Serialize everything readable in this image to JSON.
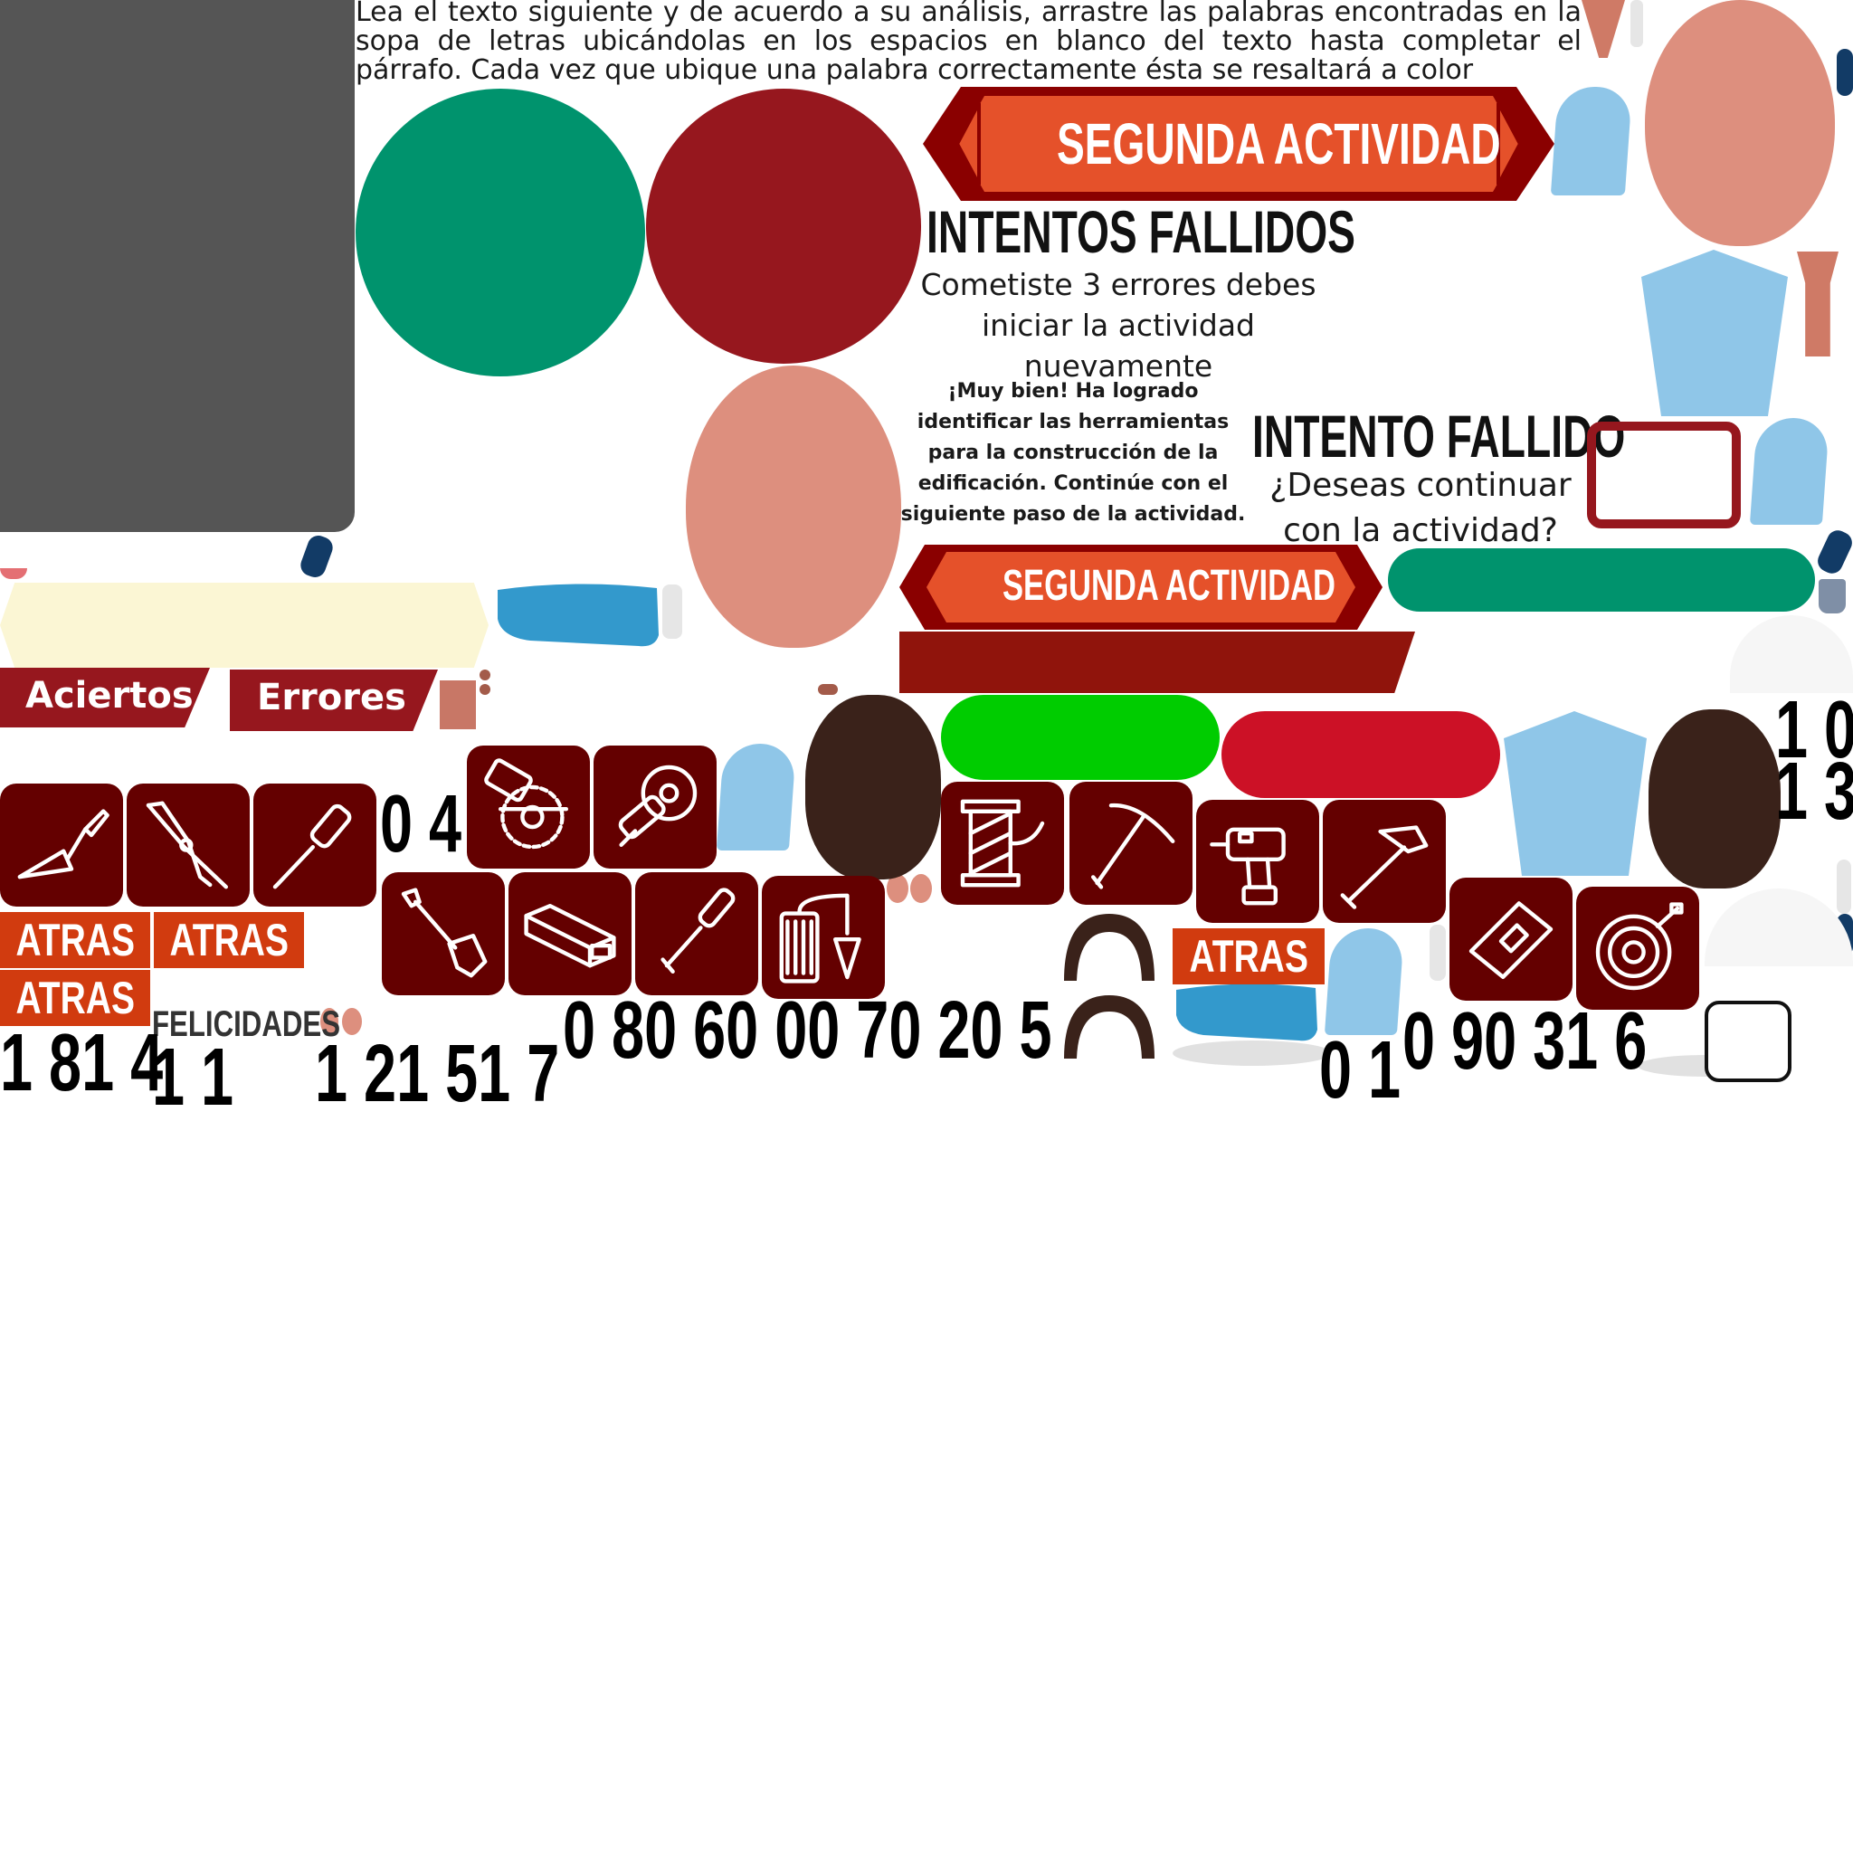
{
  "instructions": "Lea el texto siguiente y de acuerdo a su análisis, arrastre las palabras encontradas en la sopa de letras ubicándolas en los espacios en blanco del texto hasta completar el párrafo. Cada vez que ubique una palabra correctamente ésta se resaltará a color",
  "banners": {
    "segunda_large": "SEGUNDA ACTIVIDAD",
    "segunda_small": "SEGUNDA ACTIVIDAD"
  },
  "intentos": {
    "title": "INTENTOS FALLIDOS",
    "message": "Cometiste 3 errores debes iniciar la actividad nuevamente"
  },
  "success": {
    "message": "¡Muy bien! Ha logrado identificar las herramientas para la construcción de la edificación. Continúe con el siguiente paso de la actividad."
  },
  "intento": {
    "title": "INTENTO FALLIDO",
    "question": "¿Deseas continuar con la actividad?"
  },
  "labels": {
    "aciertos": "Aciertos",
    "errores": "Errores",
    "felicidades": "FELICIDADES"
  },
  "atras_buttons": [
    "ATRAS",
    "ATRAS",
    "ATRAS",
    "ATRAS"
  ],
  "numbers": {
    "n1": "0 4",
    "n2": "0 80 60 00 70 20 5",
    "n3": "1 81 4",
    "n4": "1 1",
    "n5": "1 21 51 7",
    "n6": "0 1",
    "n7": "0 90 31 6",
    "n8": "1 0",
    "n9": "1 3"
  },
  "tools": [
    "trowel",
    "pliers",
    "screwdriver",
    "circular-saw",
    "angle-grinder",
    "shovel",
    "steel-beam",
    "chisel",
    "plumb-bob",
    "thread-spool",
    "pickaxe",
    "drill",
    "hammer",
    "float",
    "hose-reel"
  ],
  "colors": {
    "tile": "#640000",
    "orange": "#e5512a",
    "darkred": "#8a0000",
    "teal": "#00936d",
    "crimson": "#96171e",
    "green": "#00cc00",
    "red": "#cc1126",
    "skin": "#dd8f7e",
    "lightblue": "#8fc6e8",
    "gray": "#555555"
  }
}
